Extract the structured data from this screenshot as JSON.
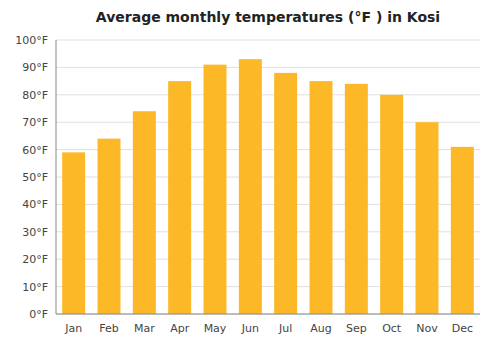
{
  "chart_data": {
    "type": "bar",
    "title": "Average monthly temperatures (°F ) in Kosi",
    "categories": [
      "Jan",
      "Feb",
      "Mar",
      "Apr",
      "May",
      "Jun",
      "Jul",
      "Aug",
      "Sep",
      "Oct",
      "Nov",
      "Dec"
    ],
    "values": [
      59,
      64,
      74,
      85,
      91,
      93,
      88,
      85,
      84,
      80,
      70,
      61
    ],
    "color": "#FDB827",
    "ylim": [
      0,
      100
    ],
    "yticks": [
      {
        "value": 0,
        "label": "0°F"
      },
      {
        "value": 10,
        "label": "10°F"
      },
      {
        "value": 20,
        "label": "20°F"
      },
      {
        "value": 30,
        "label": "30°F"
      },
      {
        "value": 40,
        "label": "40°F"
      },
      {
        "value": 50,
        "label": "50°F"
      },
      {
        "value": 60,
        "label": "60°F"
      },
      {
        "value": 70,
        "label": "70°F"
      },
      {
        "value": 80,
        "label": "80°F"
      },
      {
        "value": 90,
        "label": "90°F"
      },
      {
        "value": 100,
        "label": "100°F"
      }
    ],
    "grid": true
  }
}
